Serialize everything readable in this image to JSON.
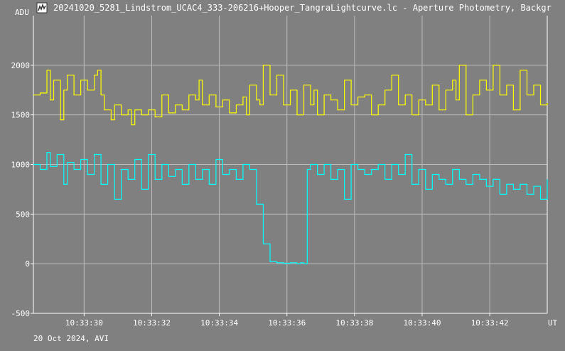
{
  "window": {
    "title": "20241020_5281_Lindstrom_UCAC4_333-206216+Hooper_TangraLightcurve.lc - Aperture Photometry, Backgr",
    "icon": "lightcurve-app-icon"
  },
  "footer_text": "20 Oct 2024, AVI",
  "chart_data": {
    "type": "line",
    "title": "",
    "ylabel": "ADU",
    "xlabel": "UT",
    "ylim": [
      -500,
      2500
    ],
    "xlim": [
      28.0,
      43.2
    ],
    "y_ticks": [
      -500,
      0,
      500,
      1000,
      1500,
      2000
    ],
    "y_tick_labels": [
      "-500",
      "0",
      "500",
      "1000",
      "1500",
      "2000"
    ],
    "x_ticks": [
      29.5,
      31.5,
      33.5,
      35.5,
      37.5,
      39.5,
      41.5
    ],
    "x_tick_labels": [
      "10:33:30",
      "10:33:32",
      "10:33:34",
      "10:33:36",
      "10:33:38",
      "10:33:40",
      "10:33:42"
    ],
    "grid": true,
    "colors": {
      "background": "#808080",
      "grid": "#bdbdbd",
      "axis": "#ffffff",
      "series1": "#ffff00",
      "series2": "#00ffff"
    },
    "series": [
      {
        "color": "#ffff00",
        "x": [
          28.0,
          28.2,
          28.4,
          28.5,
          28.6,
          28.8,
          28.9,
          29.0,
          29.2,
          29.4,
          29.6,
          29.8,
          29.9,
          30.0,
          30.1,
          30.3,
          30.4,
          30.6,
          30.8,
          30.9,
          31.0,
          31.2,
          31.4,
          31.6,
          31.8,
          32.0,
          32.2,
          32.4,
          32.6,
          32.8,
          32.9,
          33.0,
          33.2,
          33.4,
          33.6,
          33.8,
          34.0,
          34.2,
          34.3,
          34.4,
          34.6,
          34.7,
          34.8,
          35.0,
          35.2,
          35.4,
          35.6,
          35.8,
          36.0,
          36.2,
          36.3,
          36.4,
          36.6,
          36.8,
          37.0,
          37.2,
          37.4,
          37.6,
          37.8,
          38.0,
          38.2,
          38.4,
          38.6,
          38.8,
          39.0,
          39.2,
          39.4,
          39.6,
          39.8,
          40.0,
          40.2,
          40.4,
          40.5,
          40.6,
          40.8,
          41.0,
          41.2,
          41.4,
          41.6,
          41.8,
          42.0,
          42.2,
          42.4,
          42.6,
          42.8,
          43.0,
          43.2
        ],
        "y": [
          1700,
          1720,
          1950,
          1650,
          1850,
          1450,
          1750,
          1900,
          1700,
          1850,
          1750,
          1900,
          1950,
          1700,
          1550,
          1450,
          1600,
          1500,
          1550,
          1400,
          1550,
          1500,
          1550,
          1480,
          1700,
          1520,
          1600,
          1550,
          1700,
          1650,
          1850,
          1600,
          1700,
          1580,
          1650,
          1520,
          1600,
          1680,
          1500,
          1800,
          1650,
          1600,
          2000,
          1700,
          1900,
          1600,
          1750,
          1500,
          1800,
          1600,
          1750,
          1500,
          1700,
          1650,
          1550,
          1850,
          1600,
          1680,
          1700,
          1500,
          1600,
          1750,
          1900,
          1600,
          1700,
          1500,
          1650,
          1600,
          1800,
          1550,
          1750,
          1850,
          1650,
          2000,
          1500,
          1700,
          1850,
          1750,
          2000,
          1700,
          1800,
          1550,
          1950,
          1700,
          1800,
          1600,
          1620
        ]
      },
      {
        "color": "#00ffff",
        "x": [
          28.0,
          28.2,
          28.4,
          28.5,
          28.7,
          28.9,
          29.0,
          29.2,
          29.4,
          29.6,
          29.8,
          30.0,
          30.2,
          30.4,
          30.6,
          30.8,
          31.0,
          31.2,
          31.4,
          31.6,
          31.8,
          32.0,
          32.2,
          32.4,
          32.6,
          32.8,
          33.0,
          33.2,
          33.4,
          33.6,
          33.8,
          34.0,
          34.2,
          34.4,
          34.5,
          34.6,
          34.8,
          35.0,
          35.2,
          35.4,
          35.6,
          35.8,
          35.9,
          36.0,
          36.1,
          36.2,
          36.4,
          36.6,
          36.8,
          37.0,
          37.2,
          37.4,
          37.6,
          37.8,
          38.0,
          38.2,
          38.4,
          38.6,
          38.8,
          39.0,
          39.2,
          39.4,
          39.6,
          39.8,
          40.0,
          40.2,
          40.4,
          40.6,
          40.8,
          41.0,
          41.2,
          41.4,
          41.6,
          41.8,
          42.0,
          42.2,
          42.4,
          42.6,
          42.8,
          43.0,
          43.2
        ],
        "y": [
          1000,
          950,
          1120,
          980,
          1100,
          800,
          1020,
          950,
          1050,
          900,
          1100,
          800,
          1000,
          650,
          950,
          850,
          1050,
          750,
          1100,
          850,
          1000,
          880,
          950,
          800,
          1000,
          850,
          950,
          800,
          1050,
          900,
          950,
          850,
          1000,
          950,
          950,
          600,
          200,
          20,
          10,
          5,
          10,
          0,
          10,
          0,
          950,
          1000,
          900,
          1000,
          850,
          950,
          650,
          1000,
          950,
          900,
          950,
          1000,
          850,
          1000,
          900,
          1100,
          800,
          950,
          750,
          900,
          850,
          800,
          950,
          850,
          800,
          900,
          850,
          780,
          850,
          700,
          800,
          750,
          800,
          700,
          780,
          650,
          850
        ]
      }
    ]
  }
}
